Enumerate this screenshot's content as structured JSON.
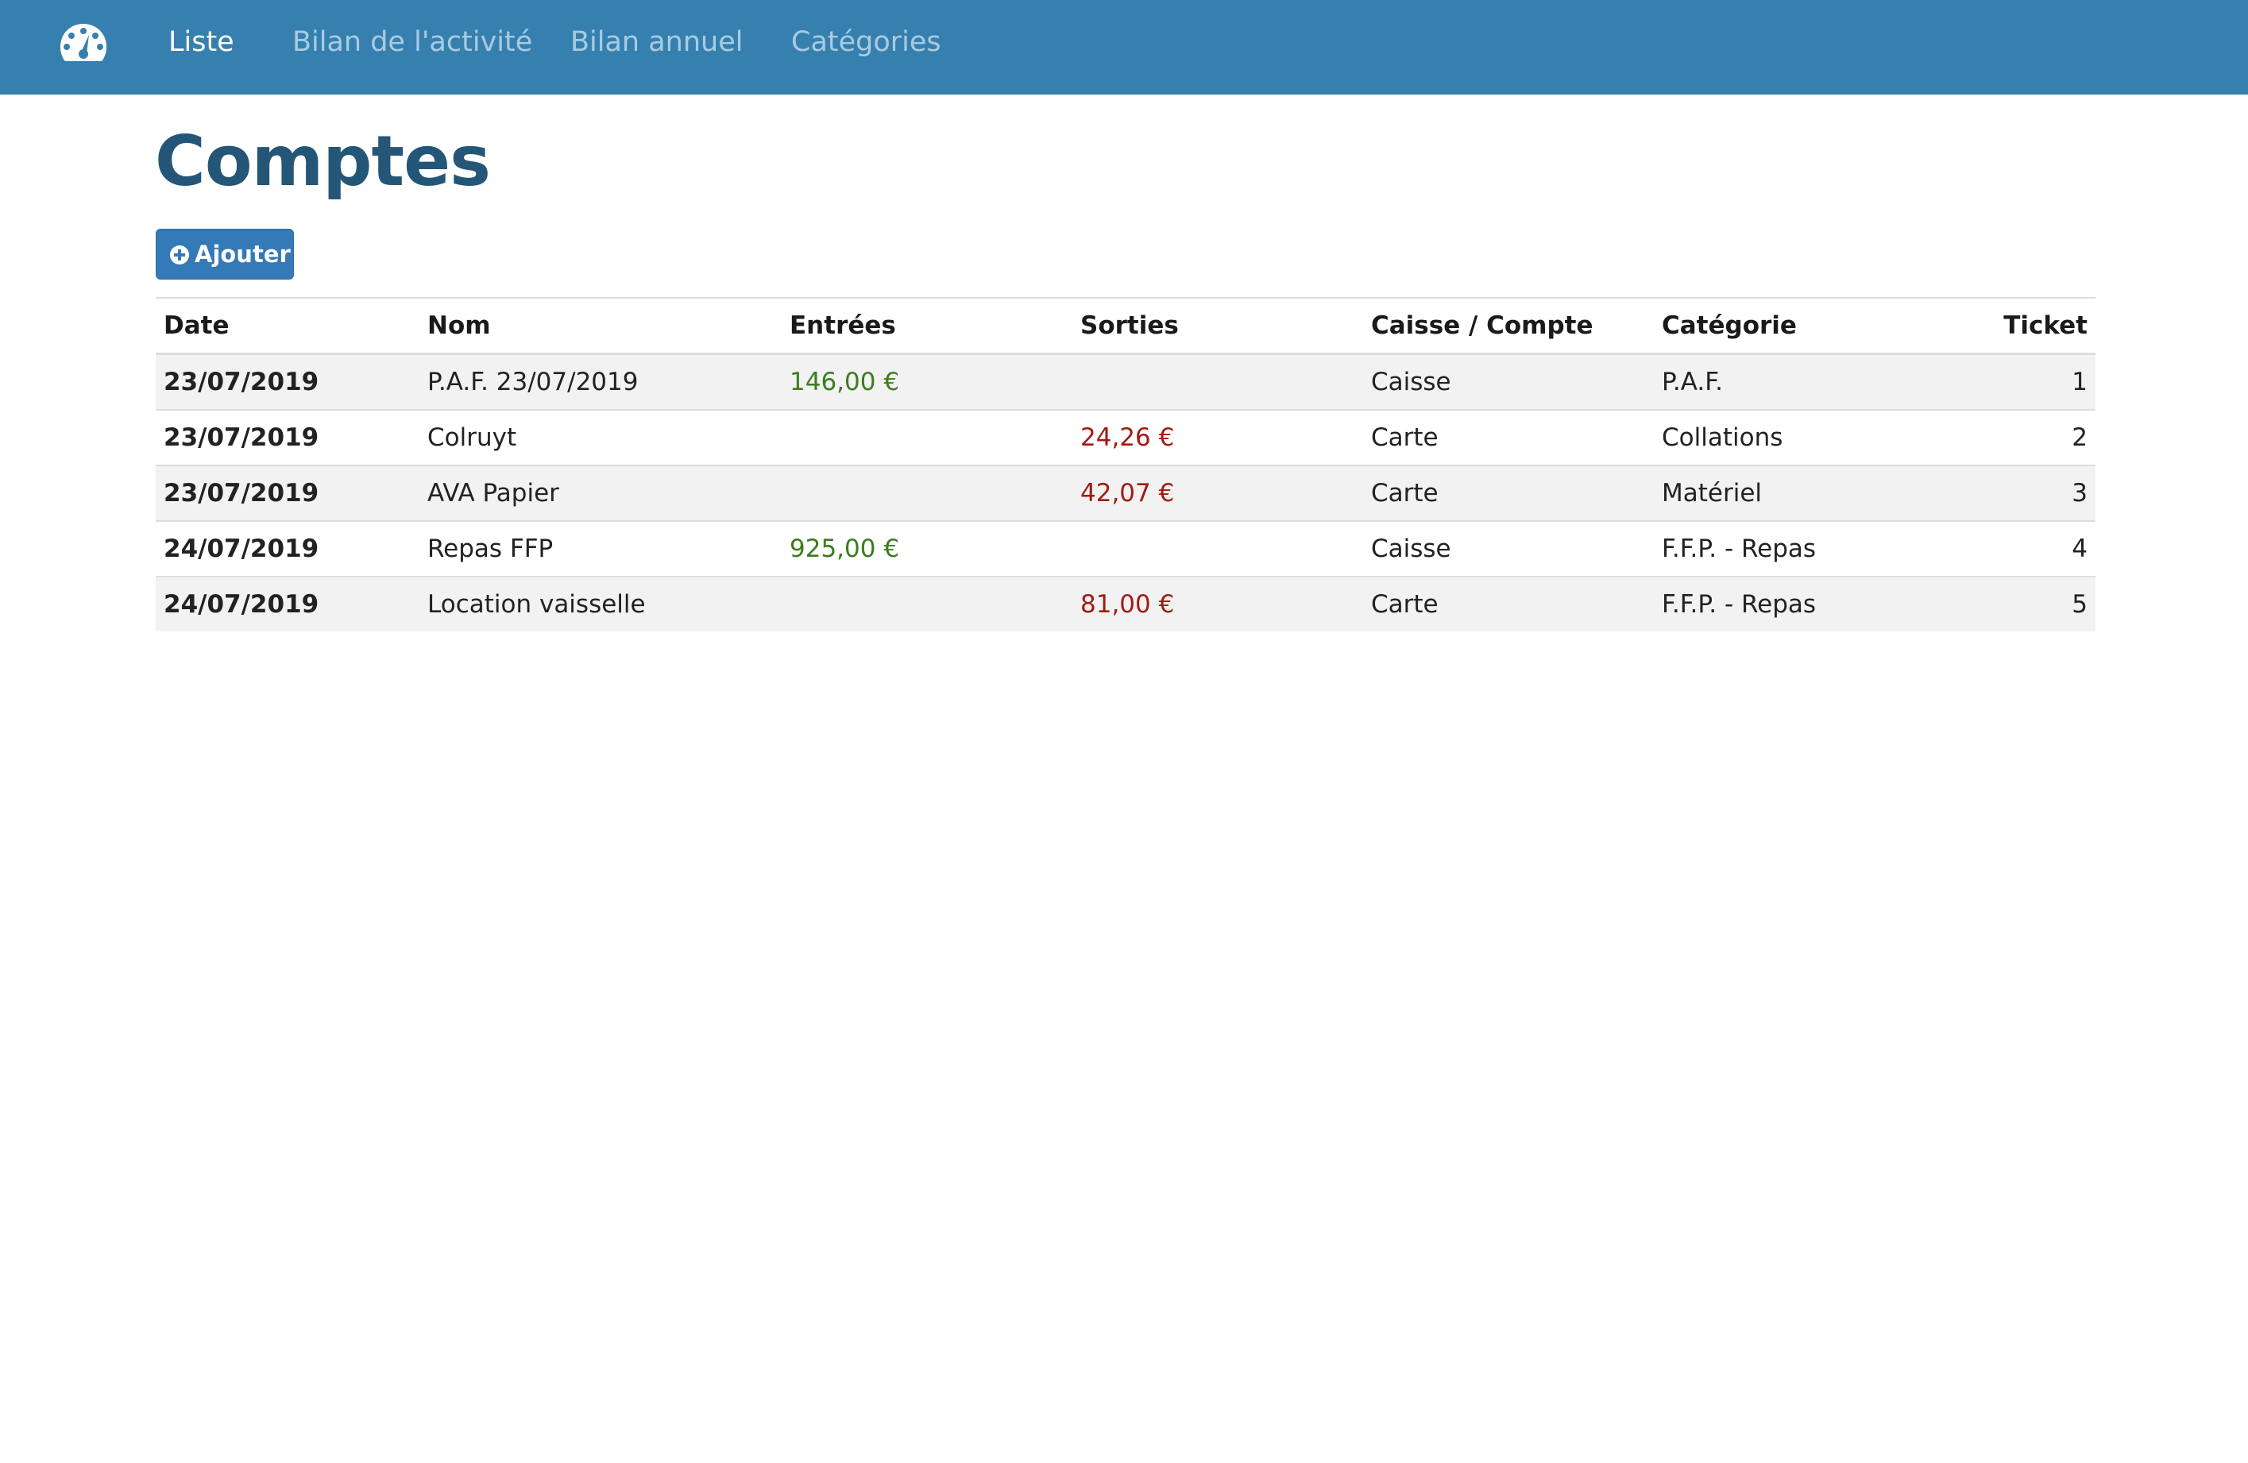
{
  "navbar": {
    "logo_icon": "dashboard-gauge-icon",
    "items": [
      {
        "label": "Liste",
        "active": true
      },
      {
        "label": "Bilan de l'activité",
        "active": false
      },
      {
        "label": "Bilan annuel",
        "active": false
      },
      {
        "label": "Catégories",
        "active": false
      }
    ]
  },
  "page": {
    "title": "Comptes",
    "add_button": {
      "label": "Ajouter",
      "icon": "plus-circle-icon"
    }
  },
  "table": {
    "headers": {
      "date": "Date",
      "nom": "Nom",
      "entrees": "Entrées",
      "sorties": "Sorties",
      "caisse": "Caisse / Compte",
      "categorie": "Catégorie",
      "ticket": "Ticket"
    },
    "rows": [
      {
        "date": "23/07/2019",
        "nom": "P.A.F. 23/07/2019",
        "entrees": "146,00 €",
        "sorties": "",
        "caisse": "Caisse",
        "categorie": "P.A.F.",
        "ticket": "1"
      },
      {
        "date": "23/07/2019",
        "nom": "Colruyt",
        "entrees": "",
        "sorties": "24,26 €",
        "caisse": "Carte",
        "categorie": "Collations",
        "ticket": "2"
      },
      {
        "date": "23/07/2019",
        "nom": "AVA Papier",
        "entrees": "",
        "sorties": "42,07 €",
        "caisse": "Carte",
        "categorie": "Matériel",
        "ticket": "3"
      },
      {
        "date": "24/07/2019",
        "nom": "Repas FFP",
        "entrees": "925,00 €",
        "sorties": "",
        "caisse": "Caisse",
        "categorie": "F.F.P. - Repas",
        "ticket": "4"
      },
      {
        "date": "24/07/2019",
        "nom": "Location vaisselle",
        "entrees": "",
        "sorties": "81,00 €",
        "caisse": "Carte",
        "categorie": "F.F.P. - Repas",
        "ticket": "5"
      }
    ]
  },
  "colors": {
    "navbar_bg": "#3680b0",
    "nav_active": "#ffffff",
    "nav_inactive": "#a9cbe1",
    "title": "#245678",
    "button_bg": "#337ab7",
    "income": "#3b7d1f",
    "expense": "#a01c14",
    "stripe": "#f2f2f2"
  }
}
